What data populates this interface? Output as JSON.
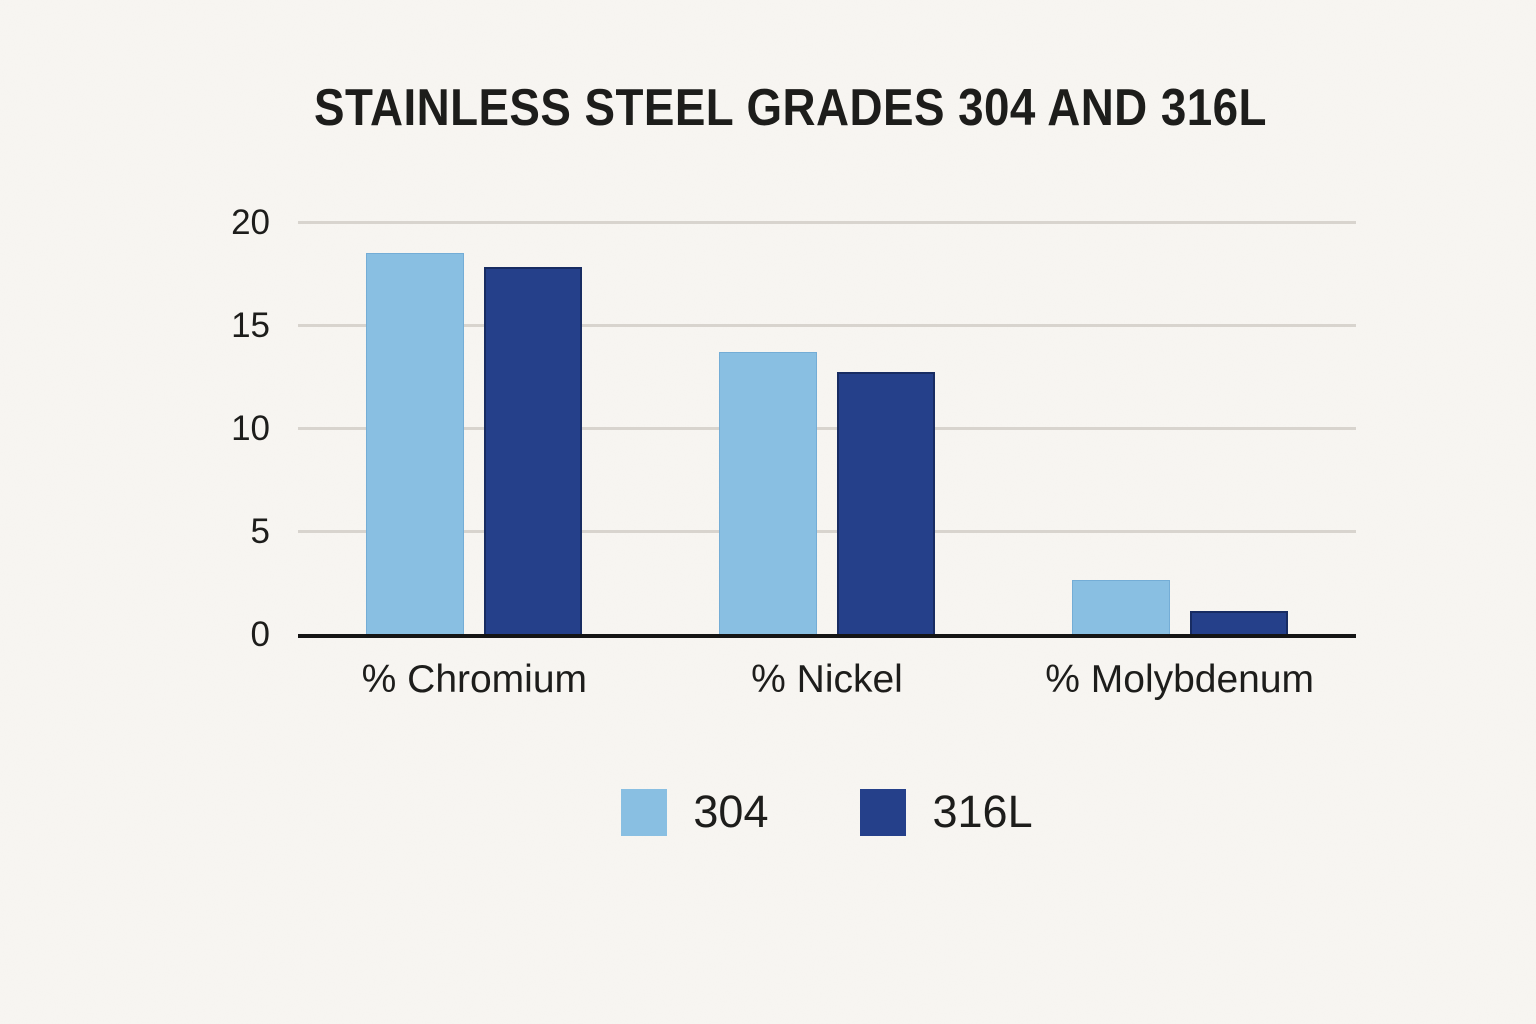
{
  "chart_data": {
    "type": "bar",
    "title": "STAINLESS STEEL GRADES 304 AND 316L",
    "categories": [
      "% Chromium",
      "% Nickel",
      "% Molybdenum"
    ],
    "series": [
      {
        "name": "304",
        "color": "#89bfe2",
        "border_color": "#74add6",
        "values": [
          18.5,
          13.7,
          2.6
        ]
      },
      {
        "name": "316L",
        "color": "#25408a",
        "border_color": "#182c62",
        "values": [
          17.8,
          12.7,
          1.1
        ]
      }
    ],
    "ylim": [
      0,
      20
    ],
    "yticks": [
      0,
      5,
      10,
      15,
      20
    ],
    "grid": true,
    "legend_position": "bottom"
  },
  "style": {
    "background": "#f7f5f1",
    "grid_color": "#d8d4ce",
    "axis_color": "#151515",
    "text_color": "#1d1d1b"
  }
}
